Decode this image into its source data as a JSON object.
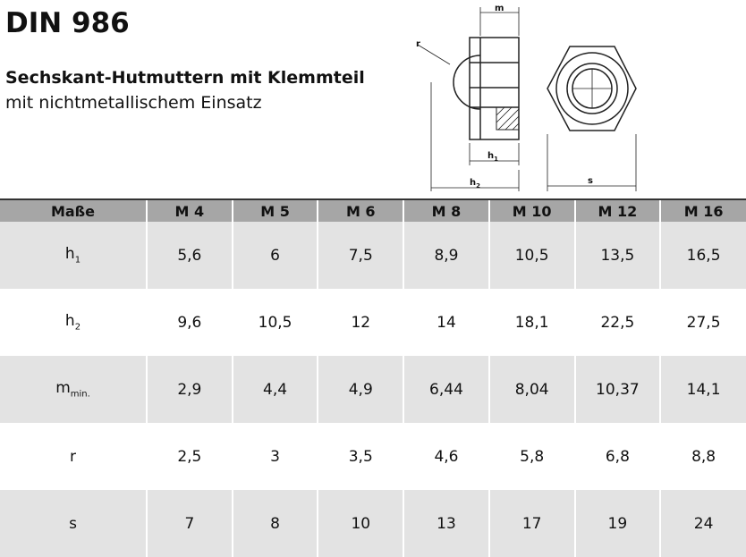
{
  "header": {
    "title": "DIN 986",
    "subtitle": "Sechskant-Hutmuttern mit Klemmteil",
    "description": "mit nichtmetallischem Einsatz"
  },
  "drawing": {
    "labels": [
      {
        "text": "m"
      },
      {
        "text": "r"
      },
      {
        "text": "h",
        "sub": "1"
      },
      {
        "text": "h",
        "sub": "2"
      },
      {
        "text": "s"
      }
    ]
  },
  "table": {
    "columns": [
      "Maße",
      "M 4",
      "M 5",
      "M 6",
      "M 8",
      "M 10",
      "M 12",
      "M 16"
    ],
    "rows": [
      {
        "label": "h",
        "sub": "1",
        "values": [
          "5,6",
          "6",
          "7,5",
          "8,9",
          "10,5",
          "13,5",
          "16,5"
        ]
      },
      {
        "label": "h",
        "sub": "2",
        "values": [
          "9,6",
          "10,5",
          "12",
          "14",
          "18,1",
          "22,5",
          "27,5"
        ]
      },
      {
        "label": "m",
        "sub": "min.",
        "values": [
          "2,9",
          "4,4",
          "4,9",
          "6,44",
          "8,04",
          "10,37",
          "14,1"
        ]
      },
      {
        "label": "r",
        "values": [
          "2,5",
          "3",
          "3,5",
          "4,6",
          "5,8",
          "6,8",
          "8,8"
        ]
      },
      {
        "label": "s",
        "values": [
          "7",
          "8",
          "10",
          "13",
          "17",
          "19",
          "24"
        ]
      }
    ]
  }
}
